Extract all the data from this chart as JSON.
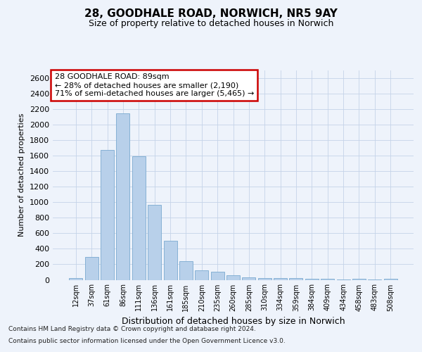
{
  "title_line1": "28, GOODHALE ROAD, NORWICH, NR5 9AY",
  "title_line2": "Size of property relative to detached houses in Norwich",
  "xlabel": "Distribution of detached houses by size in Norwich",
  "ylabel": "Number of detached properties",
  "categories": [
    "12sqm",
    "37sqm",
    "61sqm",
    "86sqm",
    "111sqm",
    "136sqm",
    "161sqm",
    "185sqm",
    "210sqm",
    "235sqm",
    "260sqm",
    "285sqm",
    "310sqm",
    "334sqm",
    "359sqm",
    "384sqm",
    "409sqm",
    "434sqm",
    "458sqm",
    "483sqm",
    "508sqm"
  ],
  "values": [
    20,
    295,
    1670,
    2150,
    1590,
    970,
    500,
    245,
    120,
    100,
    55,
    35,
    27,
    20,
    20,
    18,
    10,
    8,
    10,
    5,
    18
  ],
  "bar_color": "#b8d0ea",
  "bar_edge_color": "#7aaad0",
  "annotation_line1": "28 GOODHALE ROAD: 89sqm",
  "annotation_line2": "← 28% of detached houses are smaller (2,190)",
  "annotation_line3": "71% of semi-detached houses are larger (5,465) →",
  "annotation_box_facecolor": "#ffffff",
  "annotation_box_edgecolor": "#cc0000",
  "ylim": [
    0,
    2700
  ],
  "yticks": [
    0,
    200,
    400,
    600,
    800,
    1000,
    1200,
    1400,
    1600,
    1800,
    2000,
    2200,
    2400,
    2600
  ],
  "footer_line1": "Contains HM Land Registry data © Crown copyright and database right 2024.",
  "footer_line2": "Contains public sector information licensed under the Open Government Licence v3.0.",
  "bg_color": "#eef3fb",
  "grid_color": "#c5d3e8"
}
